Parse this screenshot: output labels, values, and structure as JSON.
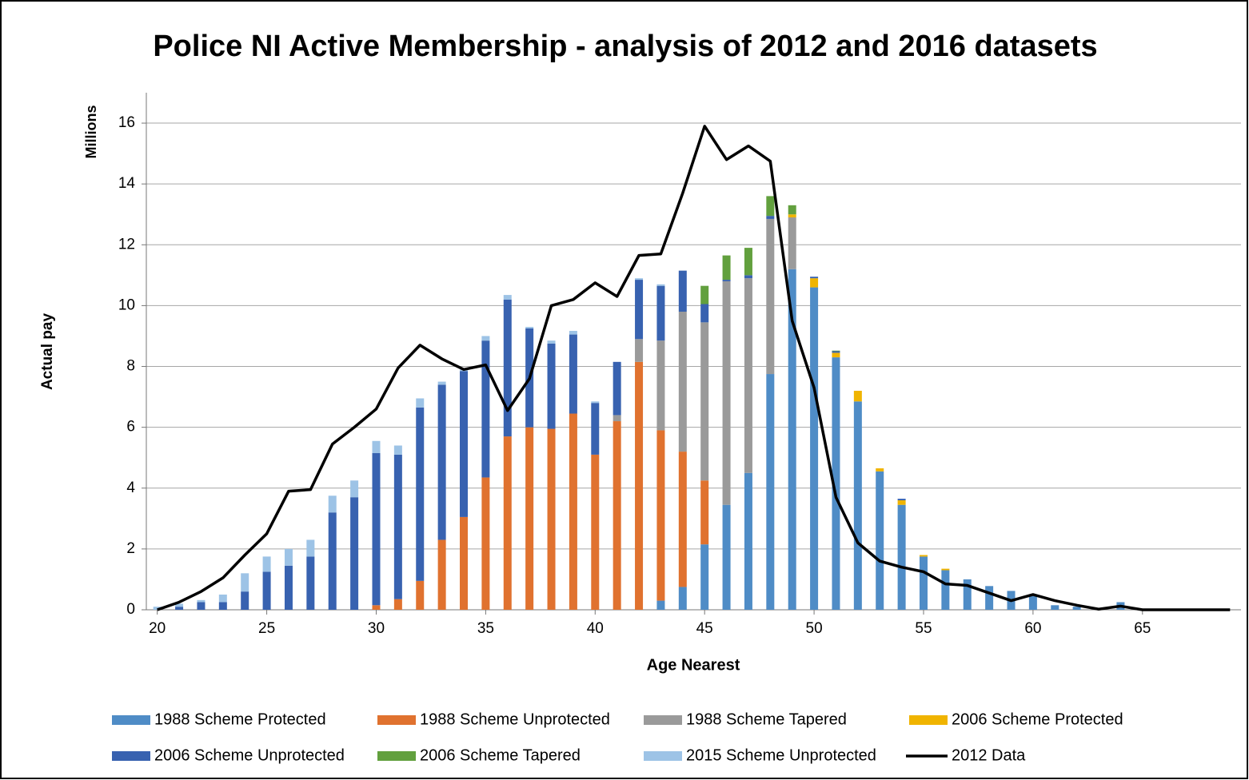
{
  "chart_data": {
    "type": "bar",
    "stacked": true,
    "title": "Police NI Active Membership - analysis of 2012 and 2016 datasets",
    "y_unit_label": "Millions",
    "y_label": "Actual pay",
    "x_label": "Age Nearest",
    "x": [
      20,
      21,
      22,
      23,
      24,
      25,
      26,
      27,
      28,
      29,
      30,
      31,
      32,
      33,
      34,
      35,
      36,
      37,
      38,
      39,
      40,
      41,
      42,
      43,
      44,
      45,
      46,
      47,
      48,
      49,
      50,
      51,
      52,
      53,
      54,
      55,
      56,
      57,
      58,
      59,
      60,
      61,
      62,
      63,
      64,
      65,
      66,
      67,
      68,
      69
    ],
    "xlim": [
      19.5,
      69.5
    ],
    "xticks": [
      20,
      25,
      30,
      35,
      40,
      45,
      50,
      55,
      60,
      65
    ],
    "ylim": [
      0,
      17
    ],
    "yticks": [
      0,
      2,
      4,
      6,
      8,
      10,
      12,
      14,
      16
    ],
    "grid": true,
    "legend": "bottom",
    "series": [
      {
        "name": "1988 Scheme Protected",
        "color": "#4f8cc6",
        "type": "bar",
        "values": [
          0,
          0,
          0,
          0,
          0,
          0,
          0,
          0,
          0,
          0,
          0,
          0,
          0,
          0,
          0,
          0,
          0,
          0,
          0,
          0,
          0,
          0,
          0,
          0.3,
          0.75,
          2.15,
          3.45,
          4.5,
          7.75,
          11.2,
          10.6,
          8.3,
          6.85,
          4.55,
          3.45,
          1.75,
          1.3,
          1.0,
          0.78,
          0.62,
          0.45,
          0.15,
          0.1,
          0.05,
          0.25,
          0,
          0,
          0,
          0,
          0
        ]
      },
      {
        "name": "1988 Scheme Unprotected",
        "color": "#e0722f",
        "type": "bar",
        "values": [
          0,
          0,
          0,
          0,
          0,
          0,
          0,
          0,
          0,
          0,
          0.15,
          0.35,
          0.95,
          2.3,
          3.05,
          4.35,
          5.7,
          6.0,
          5.95,
          6.45,
          5.1,
          6.2,
          8.15,
          5.6,
          4.45,
          2.1,
          0,
          0,
          0,
          0,
          0,
          0,
          0,
          0,
          0,
          0,
          0,
          0,
          0,
          0,
          0,
          0,
          0,
          0,
          0,
          0,
          0,
          0,
          0,
          0
        ]
      },
      {
        "name": "1988 Scheme Tapered",
        "color": "#9a9a9a",
        "type": "bar",
        "values": [
          0,
          0,
          0,
          0,
          0,
          0,
          0,
          0,
          0,
          0,
          0,
          0,
          0,
          0,
          0,
          0,
          0,
          0,
          0,
          0,
          0,
          0.2,
          0.75,
          2.95,
          4.6,
          5.2,
          7.35,
          6.4,
          5.1,
          1.7,
          0,
          0,
          0,
          0,
          0,
          0,
          0,
          0,
          0,
          0,
          0,
          0,
          0,
          0,
          0,
          0,
          0,
          0,
          0,
          0
        ]
      },
      {
        "name": "2006 Scheme Protected",
        "color": "#f0b400",
        "type": "bar",
        "values": [
          0,
          0,
          0,
          0,
          0,
          0,
          0,
          0,
          0,
          0,
          0,
          0,
          0,
          0,
          0,
          0,
          0,
          0,
          0,
          0,
          0,
          0,
          0,
          0,
          0,
          0,
          0,
          0,
          0,
          0.1,
          0.3,
          0.15,
          0.35,
          0.1,
          0.15,
          0.05,
          0.05,
          0,
          0,
          0,
          0,
          0,
          0,
          0,
          0,
          0,
          0,
          0,
          0,
          0
        ]
      },
      {
        "name": "2006 Scheme Unprotected",
        "color": "#3862b0",
        "type": "bar",
        "values": [
          0,
          0.1,
          0.25,
          0.25,
          0.6,
          1.25,
          1.45,
          1.75,
          3.2,
          3.7,
          5.0,
          4.75,
          5.7,
          5.1,
          4.8,
          4.5,
          4.5,
          3.25,
          2.8,
          2.6,
          1.7,
          1.75,
          1.95,
          1.8,
          1.35,
          0.6,
          0.05,
          0.1,
          0.1,
          0,
          0.05,
          0.05,
          0,
          0,
          0.05,
          0,
          0,
          0,
          0,
          0,
          0,
          0,
          0,
          0,
          0,
          0,
          0,
          0,
          0,
          0
        ]
      },
      {
        "name": "2006 Scheme Tapered",
        "color": "#62a03e",
        "type": "bar",
        "values": [
          0,
          0,
          0,
          0,
          0,
          0,
          0,
          0,
          0,
          0,
          0,
          0,
          0,
          0,
          0,
          0,
          0,
          0,
          0,
          0,
          0,
          0,
          0,
          0,
          0,
          0.6,
          0.8,
          0.9,
          0.65,
          0.3,
          0,
          0.02,
          0,
          0,
          0,
          0,
          0,
          0,
          0,
          0,
          0,
          0,
          0,
          0,
          0,
          0,
          0,
          0,
          0,
          0
        ]
      },
      {
        "name": "2015 Scheme Unprotected",
        "color": "#9dc3e6",
        "type": "bar",
        "values": [
          0.1,
          0.1,
          0.07,
          0.25,
          0.6,
          0.5,
          0.55,
          0.55,
          0.55,
          0.55,
          0.4,
          0.3,
          0.3,
          0.1,
          0.05,
          0.15,
          0.15,
          0.05,
          0.1,
          0.12,
          0.05,
          0,
          0.05,
          0.05,
          0,
          0,
          0,
          0,
          0,
          0,
          0,
          0,
          0,
          0,
          0,
          0,
          0,
          0,
          0,
          0,
          0,
          0,
          0,
          0,
          0,
          0,
          0,
          0,
          0,
          0
        ]
      },
      {
        "name": "2012 Data",
        "color": "#000000",
        "type": "line",
        "values": [
          0,
          0.25,
          0.6,
          1.05,
          1.8,
          2.5,
          3.9,
          3.95,
          5.45,
          6.0,
          6.6,
          7.95,
          8.7,
          8.25,
          7.9,
          8.05,
          6.55,
          7.6,
          10.0,
          10.2,
          10.75,
          10.3,
          11.65,
          11.7,
          13.7,
          15.9,
          14.8,
          15.25,
          14.75,
          9.5,
          7.3,
          3.7,
          2.2,
          1.6,
          1.4,
          1.25,
          0.85,
          0.8,
          0.55,
          0.3,
          0.5,
          0.3,
          0.15,
          0.02,
          0.12,
          0,
          0,
          0,
          0,
          0
        ]
      }
    ]
  }
}
